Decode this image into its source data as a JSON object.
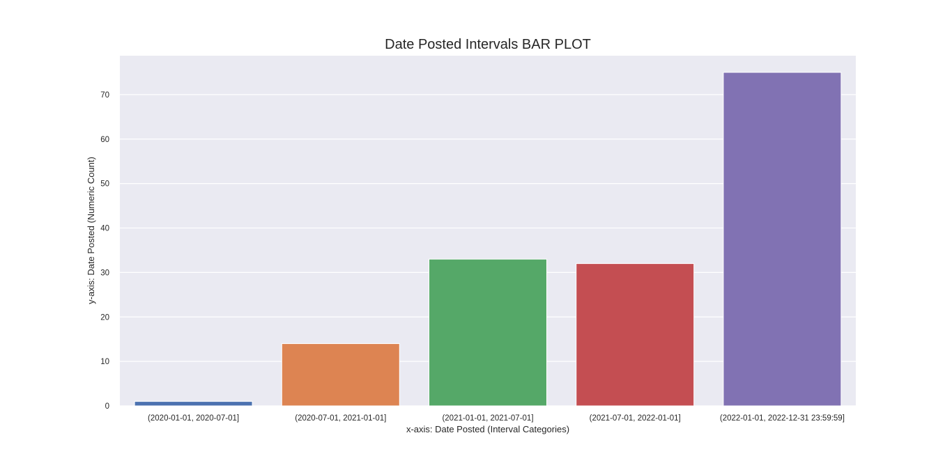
{
  "chart_data": {
    "type": "bar",
    "title": "Date Posted Intervals BAR PLOT",
    "xlabel": "x-axis: Date Posted (Interval Categories)",
    "ylabel": "y-axis: Date Posted (Numeric Count)",
    "categories": [
      "(2020-01-01, 2020-07-01]",
      "(2020-07-01, 2021-01-01]",
      "(2021-01-01, 2021-07-01]",
      "(2021-07-01, 2022-01-01]",
      "(2022-01-01, 2022-12-31 23:59:59]"
    ],
    "values": [
      1,
      14,
      33,
      32,
      75
    ],
    "colors": [
      "#4c72b0",
      "#dd8452",
      "#55a868",
      "#c44e52",
      "#8172b3"
    ],
    "ylim": [
      0,
      78.75
    ],
    "yticks": [
      0,
      10,
      20,
      30,
      40,
      50,
      60,
      70
    ],
    "grid": true,
    "background_color": "#eaeaf2",
    "grid_color": "#ffffff"
  }
}
